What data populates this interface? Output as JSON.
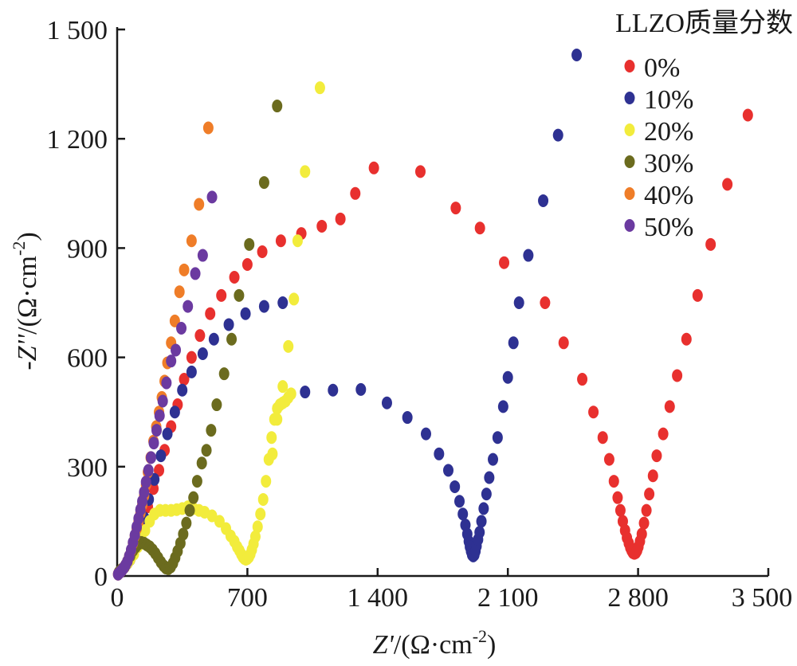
{
  "chart_data": {
    "type": "scatter",
    "title": "",
    "xlabel_var": "Z'",
    "xlabel_unit": "/(Ω·cm",
    "xlabel_exp": "-2",
    "xlabel_close": ")",
    "ylabel_var": "-Z''",
    "ylabel_unit": "/(Ω·cm",
    "ylabel_exp": "-2",
    "ylabel_close": ")",
    "xlim": [
      0,
      3500
    ],
    "ylim": [
      0,
      1500
    ],
    "xticks": [
      0,
      700,
      1400,
      2100,
      2800,
      3500
    ],
    "xtick_labels": [
      "0",
      "700",
      "1 400",
      "2 100",
      "2 800",
      "3 500"
    ],
    "yticks": [
      0,
      300,
      600,
      900,
      1200,
      1500
    ],
    "ytick_labels": [
      "0",
      "300",
      "600",
      "900",
      "1 200",
      "1 500"
    ],
    "grid": false,
    "legend_title": "LLZO质量分数",
    "legend_position": "top-right",
    "series": [
      {
        "name": "0%",
        "color": "#e8302e",
        "points": [
          [
            10,
            10
          ],
          [
            25,
            18
          ],
          [
            40,
            25
          ],
          [
            55,
            35
          ],
          [
            70,
            45
          ],
          [
            85,
            60
          ],
          [
            100,
            80
          ],
          [
            120,
            110
          ],
          [
            140,
            150
          ],
          [
            165,
            190
          ],
          [
            195,
            240
          ],
          [
            225,
            290
          ],
          [
            255,
            345
          ],
          [
            290,
            410
          ],
          [
            325,
            470
          ],
          [
            360,
            540
          ],
          [
            400,
            600
          ],
          [
            445,
            660
          ],
          [
            500,
            720
          ],
          [
            560,
            770
          ],
          [
            630,
            820
          ],
          [
            700,
            855
          ],
          [
            780,
            890
          ],
          [
            880,
            920
          ],
          [
            990,
            940
          ],
          [
            1100,
            960
          ],
          [
            1200,
            980
          ],
          [
            1280,
            1050
          ],
          [
            1380,
            1120
          ],
          [
            1630,
            1110
          ],
          [
            1820,
            1010
          ],
          [
            1950,
            955
          ],
          [
            2080,
            860
          ],
          [
            2300,
            750
          ],
          [
            2400,
            640
          ],
          [
            2500,
            540
          ],
          [
            2560,
            450
          ],
          [
            2610,
            380
          ],
          [
            2645,
            320
          ],
          [
            2670,
            260
          ],
          [
            2690,
            215
          ],
          [
            2705,
            180
          ],
          [
            2718,
            150
          ],
          [
            2730,
            125
          ],
          [
            2740,
            105
          ],
          [
            2750,
            90
          ],
          [
            2758,
            78
          ],
          [
            2765,
            70
          ],
          [
            2772,
            64
          ],
          [
            2780,
            62
          ],
          [
            2788,
            64
          ],
          [
            2795,
            70
          ],
          [
            2802,
            80
          ],
          [
            2810,
            95
          ],
          [
            2820,
            115
          ],
          [
            2832,
            145
          ],
          [
            2845,
            180
          ],
          [
            2860,
            225
          ],
          [
            2880,
            275
          ],
          [
            2900,
            330
          ],
          [
            2935,
            390
          ],
          [
            2970,
            465
          ],
          [
            3010,
            550
          ],
          [
            3060,
            650
          ],
          [
            3120,
            770
          ],
          [
            3190,
            910
          ],
          [
            3280,
            1075
          ],
          [
            3390,
            1265
          ]
        ]
      },
      {
        "name": "10%",
        "color": "#2e3192",
        "points": [
          [
            10,
            10
          ],
          [
            25,
            18
          ],
          [
            40,
            25
          ],
          [
            55,
            35
          ],
          [
            70,
            45
          ],
          [
            85,
            60
          ],
          [
            100,
            80
          ],
          [
            120,
            110
          ],
          [
            145,
            160
          ],
          [
            170,
            210
          ],
          [
            200,
            265
          ],
          [
            235,
            330
          ],
          [
            270,
            390
          ],
          [
            310,
            450
          ],
          [
            350,
            510
          ],
          [
            400,
            560
          ],
          [
            460,
            610
          ],
          [
            520,
            650
          ],
          [
            600,
            690
          ],
          [
            690,
            720
          ],
          [
            790,
            740
          ],
          [
            890,
            750
          ],
          [
            1010,
            505
          ],
          [
            1160,
            510
          ],
          [
            1310,
            512
          ],
          [
            1450,
            475
          ],
          [
            1560,
            435
          ],
          [
            1660,
            390
          ],
          [
            1730,
            335
          ],
          [
            1780,
            290
          ],
          [
            1815,
            245
          ],
          [
            1840,
            205
          ],
          [
            1858,
            170
          ],
          [
            1872,
            140
          ],
          [
            1882,
            115
          ],
          [
            1890,
            95
          ],
          [
            1896,
            80
          ],
          [
            1902,
            68
          ],
          [
            1908,
            58
          ],
          [
            1914,
            55
          ],
          [
            1920,
            58
          ],
          [
            1926,
            68
          ],
          [
            1932,
            82
          ],
          [
            1940,
            100
          ],
          [
            1948,
            120
          ],
          [
            1958,
            150
          ],
          [
            1970,
            185
          ],
          [
            1985,
            225
          ],
          [
            2000,
            270
          ],
          [
            2020,
            320
          ],
          [
            2045,
            380
          ],
          [
            2075,
            465
          ],
          [
            2100,
            545
          ],
          [
            2130,
            640
          ],
          [
            2160,
            750
          ],
          [
            2210,
            880
          ],
          [
            2290,
            1030
          ],
          [
            2370,
            1210
          ],
          [
            2470,
            1430
          ]
        ]
      },
      {
        "name": "20%",
        "color": "#f2ec3c",
        "points": [
          [
            10,
            10
          ],
          [
            25,
            18
          ],
          [
            40,
            25
          ],
          [
            55,
            35
          ],
          [
            70,
            45
          ],
          [
            90,
            60
          ],
          [
            110,
            80
          ],
          [
            130,
            100
          ],
          [
            150,
            125
          ],
          [
            175,
            150
          ],
          [
            200,
            170
          ],
          [
            230,
            180
          ],
          [
            260,
            180
          ],
          [
            290,
            180
          ],
          [
            320,
            182
          ],
          [
            350,
            185
          ],
          [
            380,
            190
          ],
          [
            410,
            185
          ],
          [
            440,
            180
          ],
          [
            470,
            175
          ],
          [
            510,
            165
          ],
          [
            550,
            150
          ],
          [
            585,
            130
          ],
          [
            610,
            110
          ],
          [
            630,
            95
          ],
          [
            645,
            80
          ],
          [
            657,
            70
          ],
          [
            667,
            60
          ],
          [
            676,
            52
          ],
          [
            684,
            48
          ],
          [
            692,
            46
          ],
          [
            700,
            48
          ],
          [
            708,
            52
          ],
          [
            716,
            60
          ],
          [
            724,
            72
          ],
          [
            733,
            88
          ],
          [
            743,
            108
          ],
          [
            755,
            135
          ],
          [
            770,
            170
          ],
          [
            785,
            210
          ],
          [
            800,
            260
          ],
          [
            815,
            320
          ],
          [
            830,
            380
          ],
          [
            845,
            430
          ],
          [
            860,
            460
          ],
          [
            875,
            470
          ],
          [
            890,
            475
          ],
          [
            905,
            480
          ],
          [
            920,
            490
          ],
          [
            935,
            500
          ],
          [
            835,
            335
          ],
          [
            860,
            430
          ],
          [
            890,
            520
          ],
          [
            920,
            630
          ],
          [
            950,
            760
          ],
          [
            970,
            920
          ],
          [
            1010,
            1110
          ],
          [
            1090,
            1340
          ]
        ]
      },
      {
        "name": "30%",
        "color": "#6b6b1e",
        "points": [
          [
            10,
            10
          ],
          [
            25,
            18
          ],
          [
            40,
            25
          ],
          [
            55,
            40
          ],
          [
            70,
            55
          ],
          [
            85,
            70
          ],
          [
            100,
            80
          ],
          [
            115,
            88
          ],
          [
            130,
            92
          ],
          [
            145,
            90
          ],
          [
            160,
            85
          ],
          [
            175,
            80
          ],
          [
            190,
            72
          ],
          [
            205,
            62
          ],
          [
            220,
            50
          ],
          [
            235,
            38
          ],
          [
            250,
            28
          ],
          [
            262,
            22
          ],
          [
            275,
            20
          ],
          [
            288,
            25
          ],
          [
            300,
            35
          ],
          [
            312,
            50
          ],
          [
            325,
            68
          ],
          [
            340,
            90
          ],
          [
            355,
            115
          ],
          [
            372,
            145
          ],
          [
            390,
            180
          ],
          [
            410,
            215
          ],
          [
            430,
            260
          ],
          [
            455,
            310
          ],
          [
            480,
            345
          ],
          [
            505,
            400
          ],
          [
            535,
            470
          ],
          [
            575,
            555
          ],
          [
            615,
            650
          ],
          [
            655,
            770
          ],
          [
            710,
            910
          ],
          [
            790,
            1080
          ],
          [
            860,
            1290
          ]
        ]
      },
      {
        "name": "40%",
        "color": "#ef7d28",
        "points": [
          [
            5,
            5
          ],
          [
            15,
            10
          ],
          [
            25,
            15
          ],
          [
            35,
            22
          ],
          [
            45,
            30
          ],
          [
            55,
            40
          ],
          [
            65,
            55
          ],
          [
            75,
            70
          ],
          [
            85,
            90
          ],
          [
            95,
            110
          ],
          [
            105,
            130
          ],
          [
            115,
            150
          ],
          [
            125,
            172
          ],
          [
            135,
            195
          ],
          [
            145,
            220
          ],
          [
            155,
            250
          ],
          [
            165,
            285
          ],
          [
            180,
            325
          ],
          [
            195,
            370
          ],
          [
            210,
            410
          ],
          [
            225,
            450
          ],
          [
            240,
            490
          ],
          [
            255,
            535
          ],
          [
            270,
            585
          ],
          [
            290,
            640
          ],
          [
            310,
            700
          ],
          [
            335,
            780
          ],
          [
            360,
            840
          ],
          [
            400,
            920
          ],
          [
            440,
            1020
          ],
          [
            490,
            1230
          ]
        ]
      },
      {
        "name": "50%",
        "color": "#6b3aa0",
        "points": [
          [
            5,
            5
          ],
          [
            15,
            10
          ],
          [
            25,
            15
          ],
          [
            35,
            22
          ],
          [
            45,
            30
          ],
          [
            55,
            40
          ],
          [
            65,
            55
          ],
          [
            75,
            72
          ],
          [
            85,
            92
          ],
          [
            95,
            112
          ],
          [
            105,
            135
          ],
          [
            115,
            158
          ],
          [
            125,
            182
          ],
          [
            135,
            205
          ],
          [
            145,
            230
          ],
          [
            155,
            258
          ],
          [
            168,
            290
          ],
          [
            182,
            325
          ],
          [
            197,
            365
          ],
          [
            212,
            400
          ],
          [
            228,
            440
          ],
          [
            245,
            480
          ],
          [
            265,
            530
          ],
          [
            290,
            590
          ],
          [
            315,
            620
          ],
          [
            345,
            680
          ],
          [
            380,
            740
          ],
          [
            420,
            830
          ],
          [
            460,
            880
          ],
          [
            510,
            1040
          ]
        ]
      }
    ]
  }
}
